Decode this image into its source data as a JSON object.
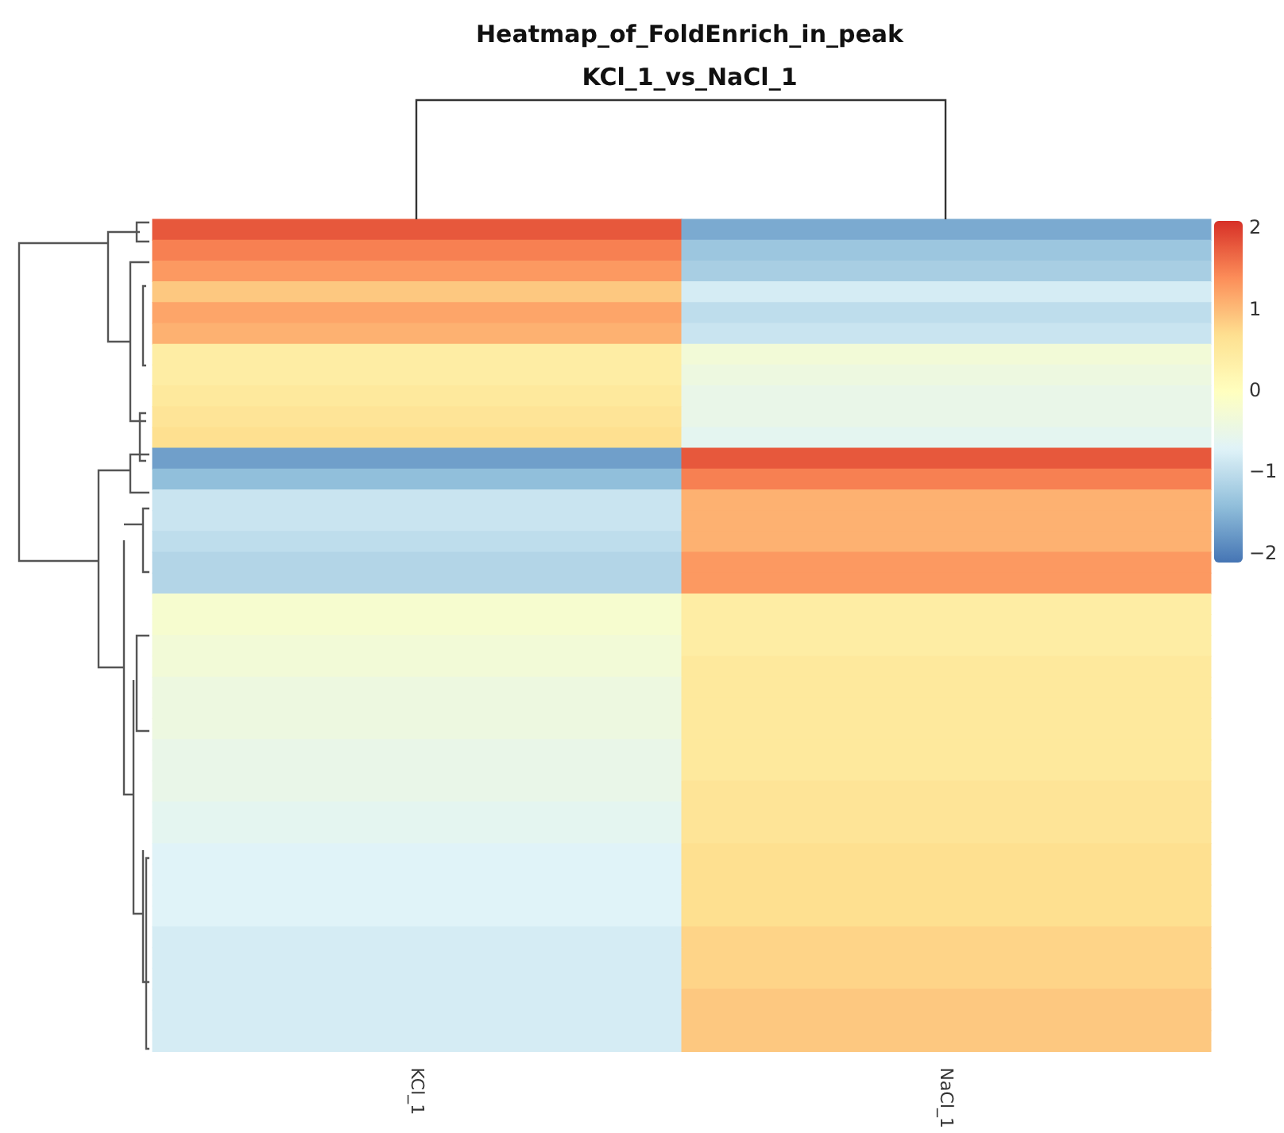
{
  "chart_data": {
    "type": "heatmap",
    "title": "Heatmap_of_FoldEnrich_in_peak",
    "subtitle": "KCl_1_vs_NaCl_1",
    "categories": [
      "KCl_1",
      "NaCl_1"
    ],
    "y_categories": [
      null,
      null,
      null,
      null,
      null,
      null,
      null,
      null,
      null,
      null,
      null,
      null,
      null,
      null,
      null,
      null,
      null,
      null,
      null,
      null,
      null,
      null,
      null,
      null,
      null,
      null,
      null,
      null,
      null,
      null,
      null,
      null,
      null,
      null,
      null,
      null,
      null,
      null,
      null,
      null
    ],
    "cells": [
      [
        1.8,
        -1.6
      ],
      [
        1.5,
        -1.3
      ],
      [
        1.3,
        -1.2
      ],
      [
        0.9,
        -0.8
      ],
      [
        1.2,
        -1.0
      ],
      [
        1.1,
        -0.9
      ],
      [
        0.4,
        -0.3
      ],
      [
        0.4,
        -0.4
      ],
      [
        0.5,
        -0.5
      ],
      [
        0.6,
        -0.5
      ],
      [
        0.7,
        -0.6
      ],
      [
        -1.7,
        1.8
      ],
      [
        -1.4,
        1.5
      ],
      [
        -0.9,
        1.1
      ],
      [
        -0.9,
        1.1
      ],
      [
        -1.0,
        1.1
      ],
      [
        -1.1,
        1.3
      ],
      [
        -1.1,
        1.3
      ],
      [
        -0.2,
        0.4
      ],
      [
        -0.2,
        0.4
      ],
      [
        -0.3,
        0.4
      ],
      [
        -0.3,
        0.5
      ],
      [
        -0.4,
        0.5
      ],
      [
        -0.4,
        0.5
      ],
      [
        -0.4,
        0.5
      ],
      [
        -0.5,
        0.5
      ],
      [
        -0.5,
        0.5
      ],
      [
        -0.5,
        0.6
      ],
      [
        -0.6,
        0.6
      ],
      [
        -0.6,
        0.6
      ],
      [
        -0.7,
        0.7
      ],
      [
        -0.7,
        0.7
      ],
      [
        -0.7,
        0.7
      ],
      [
        -0.7,
        0.7
      ],
      [
        -0.8,
        0.8
      ],
      [
        -0.8,
        0.8
      ],
      [
        -0.8,
        0.8
      ],
      [
        -0.8,
        0.9
      ],
      [
        -0.8,
        0.9
      ],
      [
        -0.8,
        0.9
      ]
    ],
    "clim": [
      -2.1,
      2.1
    ],
    "cticks": [
      {
        "value": -2,
        "label": "−2"
      },
      {
        "value": -1,
        "label": "−1"
      },
      0,
      1,
      2
    ]
  }
}
